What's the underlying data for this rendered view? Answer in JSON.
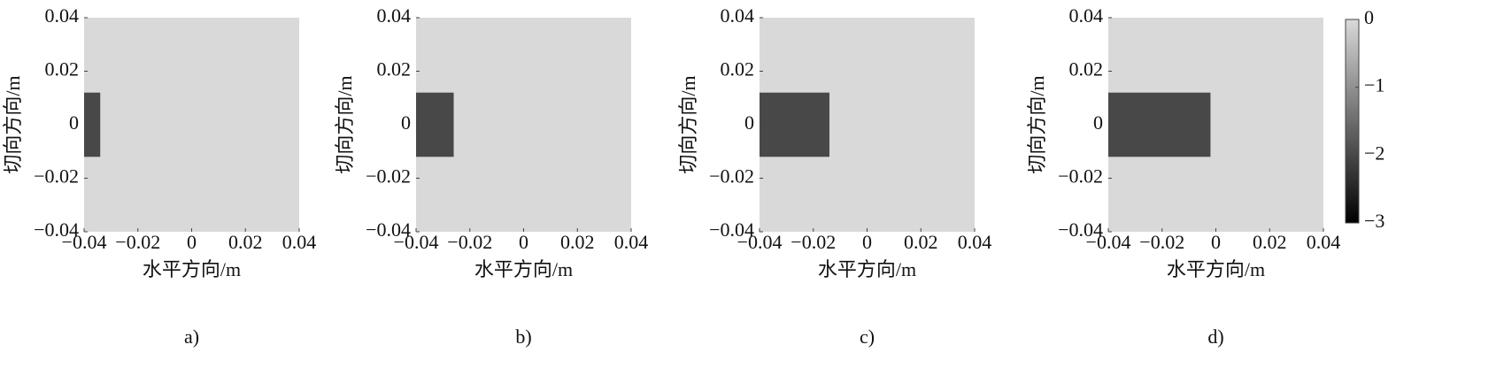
{
  "chart_data": [
    {
      "type": "heatmap",
      "caption": "a)",
      "xlabel": "水平方向/m",
      "ylabel": "切向方向/m",
      "xlim": [
        -0.04,
        0.04
      ],
      "ylim": [
        -0.04,
        0.04
      ],
      "xticks": [
        {
          "value": -0.04,
          "label": "−0.04"
        },
        {
          "value": -0.02,
          "label": "−0.02"
        },
        0,
        0.02,
        0.04
      ],
      "yticks": [
        {
          "value": -0.04,
          "label": "−0.04"
        },
        {
          "value": -0.02,
          "label": "−0.02"
        },
        0,
        0.02,
        0.04
      ],
      "background": 0,
      "regions": [
        {
          "x": [
            -0.04,
            -0.034
          ],
          "y": [
            -0.012,
            0.012
          ],
          "value": -2
        }
      ]
    },
    {
      "type": "heatmap",
      "caption": "b)",
      "xlabel": "水平方向/m",
      "ylabel": "切向方向/m",
      "xlim": [
        -0.04,
        0.04
      ],
      "ylim": [
        -0.04,
        0.04
      ],
      "xticks": [
        {
          "value": -0.04,
          "label": "−0.04"
        },
        {
          "value": -0.02,
          "label": "−0.02"
        },
        0,
        0.02,
        0.04
      ],
      "yticks": [
        {
          "value": -0.04,
          "label": "−0.04"
        },
        {
          "value": -0.02,
          "label": "−0.02"
        },
        0,
        0.02,
        0.04
      ],
      "background": 0,
      "regions": [
        {
          "x": [
            -0.04,
            -0.026
          ],
          "y": [
            -0.012,
            0.012
          ],
          "value": -2
        }
      ]
    },
    {
      "type": "heatmap",
      "caption": "c)",
      "xlabel": "水平方向/m",
      "ylabel": "切向方向/m",
      "xlim": [
        -0.04,
        0.04
      ],
      "ylim": [
        -0.04,
        0.04
      ],
      "xticks": [
        {
          "value": -0.04,
          "label": "−0.04"
        },
        {
          "value": -0.02,
          "label": "−0.02"
        },
        0,
        0.02,
        0.04
      ],
      "yticks": [
        {
          "value": -0.04,
          "label": "−0.04"
        },
        {
          "value": -0.02,
          "label": "−0.02"
        },
        0,
        0.02,
        0.04
      ],
      "background": 0,
      "regions": [
        {
          "x": [
            -0.04,
            -0.014
          ],
          "y": [
            -0.012,
            0.012
          ],
          "value": -2
        }
      ]
    },
    {
      "type": "heatmap",
      "caption": "d)",
      "xlabel": "水平方向/m",
      "ylabel": "切向方向/m",
      "xlim": [
        -0.04,
        0.04
      ],
      "ylim": [
        -0.04,
        0.04
      ],
      "xticks": [
        {
          "value": -0.04,
          "label": "−0.04"
        },
        {
          "value": -0.02,
          "label": "−0.02"
        },
        0,
        0.02,
        0.04
      ],
      "yticks": [
        {
          "value": -0.04,
          "label": "−0.04"
        },
        {
          "value": -0.02,
          "label": "−0.02"
        },
        0,
        0.02,
        0.04
      ],
      "background": 0,
      "regions": [
        {
          "x": [
            -0.04,
            -0.002
          ],
          "y": [
            -0.012,
            0.012
          ],
          "value": -2
        }
      ],
      "colorbar": {
        "lim": [
          -3,
          0
        ],
        "colors": [
          "#000000",
          "#d9d9d9"
        ],
        "ticks": [
          0,
          {
            "value": -1,
            "label": "−1"
          },
          {
            "value": -2,
            "label": "−2"
          },
          {
            "value": -3,
            "label": "−3"
          }
        ]
      }
    }
  ]
}
